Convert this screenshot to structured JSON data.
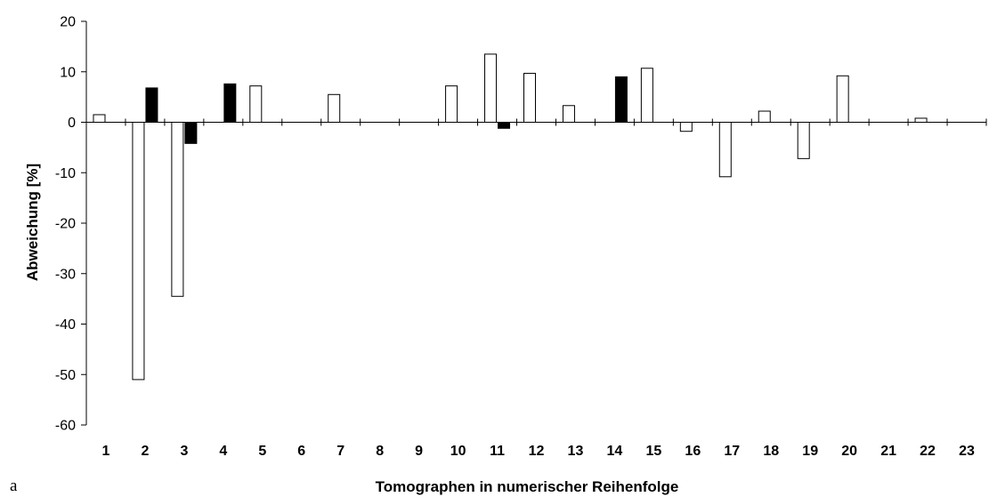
{
  "chart_data": {
    "type": "bar",
    "categories": [
      "1",
      "2",
      "3",
      "4",
      "5",
      "6",
      "7",
      "8",
      "9",
      "10",
      "11",
      "12",
      "13",
      "14",
      "15",
      "16",
      "17",
      "18",
      "19",
      "20",
      "21",
      "22",
      "23"
    ],
    "series": [
      {
        "color": "#ffffff",
        "values": [
          1.5,
          -51,
          -34.5,
          null,
          7.2,
          null,
          5.5,
          null,
          null,
          7.2,
          13.5,
          9.7,
          3.3,
          null,
          10.7,
          -1.8,
          -10.8,
          2.2,
          -7.2,
          9.2,
          null,
          0.8,
          null
        ]
      },
      {
        "color": "#000000",
        "values": [
          null,
          6.8,
          -4.2,
          7.6,
          null,
          null,
          null,
          null,
          null,
          null,
          -1.2,
          null,
          null,
          9.0,
          null,
          null,
          null,
          null,
          null,
          null,
          null,
          null,
          null
        ]
      }
    ],
    "ylim": [
      -60,
      20
    ],
    "yticks": [
      20,
      10,
      0,
      -10,
      -20,
      -30,
      -40,
      -50,
      -60
    ],
    "ylabel": "Abweichung [%]",
    "xlabel": "Tomographen in numerischer Reihenfolge",
    "panel_label": "a"
  }
}
